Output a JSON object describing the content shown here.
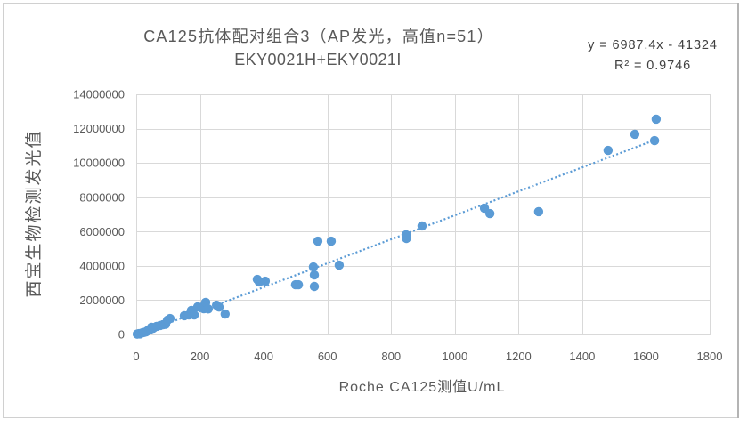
{
  "chart_data": {
    "type": "scatter",
    "title": "CA125抗体配对组合3（AP发光，高值n=51）",
    "subtitle": "EKY0021H+EKY0021I",
    "xlabel": "Roche CA125测值U/mL",
    "ylabel": "西宝生物检测发光值",
    "xlim": [
      0,
      1800
    ],
    "ylim": [
      0,
      14000000
    ],
    "xticks": [
      0,
      200,
      400,
      600,
      800,
      1000,
      1200,
      1400,
      1600,
      1800
    ],
    "yticks": [
      0,
      2000000,
      4000000,
      6000000,
      8000000,
      10000000,
      12000000,
      14000000
    ],
    "grid": true,
    "series": [
      {
        "color": "#5b9bd5",
        "x": [
          3,
          8,
          11,
          14,
          20,
          25,
          31,
          34,
          39,
          45,
          48,
          53,
          64,
          75,
          84,
          92,
          98,
          106,
          151,
          165,
          173,
          182,
          193,
          207,
          212,
          218,
          226,
          252,
          260,
          279,
          380,
          386,
          405,
          500,
          509,
          556,
          559,
          559,
          570,
          612,
          637,
          847,
          848,
          897,
          1093,
          1110,
          1263,
          1481,
          1565,
          1627,
          1632
        ],
        "y": [
          20000,
          50000,
          30000,
          60000,
          100000,
          120000,
          150000,
          200000,
          260000,
          310000,
          420000,
          360000,
          470000,
          520000,
          570000,
          590000,
          830000,
          930000,
          1090000,
          1140000,
          1400000,
          1140000,
          1610000,
          1600000,
          1500000,
          1870000,
          1490000,
          1710000,
          1600000,
          1190000,
          3210000,
          3060000,
          3110000,
          2900000,
          2900000,
          3940000,
          3470000,
          2800000,
          5440000,
          5440000,
          4040000,
          5810000,
          5600000,
          6330000,
          7360000,
          7050000,
          7160000,
          10730000,
          11670000,
          11300000,
          12550000
        ]
      }
    ],
    "trendline": {
      "type": "linear",
      "equation": "y = 6987.4x - 41324",
      "r_squared": "R² = 0.9746",
      "slope": 6987.4,
      "intercept": -41324,
      "color": "#5b9bd5"
    },
    "text_color": "#595959",
    "grid_color": "#d9d9d9"
  }
}
